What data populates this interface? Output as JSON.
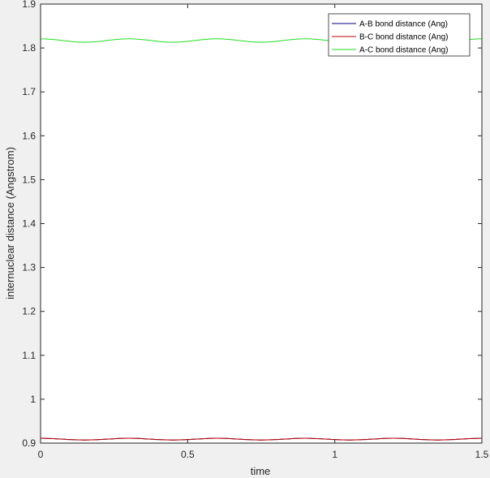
{
  "chart_data": {
    "type": "line",
    "xlabel": "time",
    "ylabel": "internuclear distance (Angstrom)",
    "xlim": [
      0,
      1.5
    ],
    "ylim": [
      0.9,
      1.9
    ],
    "xticks": [
      0,
      0.5,
      1,
      1.5
    ],
    "xtick_labels": [
      "0",
      "0.5",
      "1",
      "1.5"
    ],
    "yticks": [
      0.9,
      1,
      1.1,
      1.2,
      1.3,
      1.4,
      1.5,
      1.6,
      1.7,
      1.8,
      1.9
    ],
    "ytick_labels": [
      "0.9",
      "1",
      "1.1",
      "1.2",
      "1.3",
      "1.4",
      "1.5",
      "1.6",
      "1.7",
      "1.8",
      "1.9"
    ],
    "grid": false,
    "legend_position": "top-right",
    "x": [
      0,
      0.05,
      0.1,
      0.15,
      0.2,
      0.25,
      0.3,
      0.35,
      0.4,
      0.45,
      0.5,
      0.55,
      0.6,
      0.65,
      0.7,
      0.75,
      0.8,
      0.85,
      0.9,
      0.95,
      1.0,
      1.05,
      1.1,
      1.15,
      1.2,
      1.25,
      1.3,
      1.35,
      1.4,
      1.45,
      1.5
    ],
    "series": [
      {
        "name": "A-B bond distance (Ang)",
        "color": "#00007f",
        "values": [
          0.911,
          0.91,
          0.908,
          0.907,
          0.908,
          0.91,
          0.911,
          0.91,
          0.908,
          0.907,
          0.908,
          0.91,
          0.911,
          0.91,
          0.908,
          0.907,
          0.908,
          0.91,
          0.911,
          0.91,
          0.908,
          0.907,
          0.908,
          0.91,
          0.911,
          0.91,
          0.908,
          0.907,
          0.908,
          0.91,
          0.911
        ]
      },
      {
        "name": "B-C bond distance (Ang)",
        "color": "#c00000",
        "values": [
          0.911,
          0.91,
          0.908,
          0.907,
          0.908,
          0.91,
          0.911,
          0.91,
          0.908,
          0.907,
          0.908,
          0.91,
          0.911,
          0.91,
          0.908,
          0.907,
          0.908,
          0.91,
          0.911,
          0.91,
          0.908,
          0.907,
          0.908,
          0.91,
          0.911,
          0.91,
          0.908,
          0.907,
          0.908,
          0.91,
          0.911
        ]
      },
      {
        "name": "A-C bond distance (Ang)",
        "color": "#22dd22",
        "values": [
          1.821,
          1.819,
          1.815,
          1.813,
          1.815,
          1.819,
          1.821,
          1.819,
          1.815,
          1.813,
          1.815,
          1.819,
          1.821,
          1.819,
          1.815,
          1.813,
          1.815,
          1.819,
          1.821,
          1.819,
          1.815,
          1.813,
          1.815,
          1.819,
          1.821,
          1.819,
          1.815,
          1.813,
          1.815,
          1.819,
          1.821
        ]
      }
    ]
  }
}
